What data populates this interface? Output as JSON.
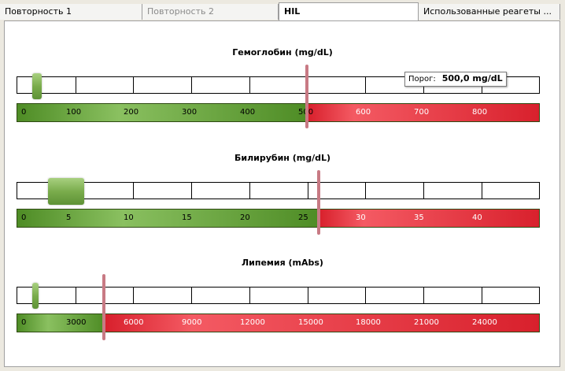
{
  "tabs": [
    {
      "label": "Повторность 1",
      "state": "normal"
    },
    {
      "label": "Повторность 2",
      "state": "inactive"
    },
    {
      "label": "HIL",
      "state": "active"
    },
    {
      "label": "Использованные реагеты ...",
      "state": "normal"
    }
  ],
  "colors": {
    "green_dark": "#4e8c25",
    "green_light": "#8ac060",
    "red": "#d8202c",
    "red_light": "#f45a63",
    "marker": "#c87a84"
  },
  "sliders": [
    {
      "title": "Гемоглобин (mg/dL)",
      "ticks": [
        "0",
        "100",
        "200",
        "300",
        "400",
        "500",
        "600",
        "700",
        "800"
      ],
      "threshold": 500,
      "max": 900,
      "value_fraction": 0.03
    },
    {
      "title": "Билирубин (mg/dL)",
      "ticks": [
        "0",
        "5",
        "10",
        "15",
        "20",
        "25",
        "30",
        "35",
        "40"
      ],
      "threshold": 26,
      "max": 45,
      "value_fraction": 0.06
    },
    {
      "title": "Липемия (mAbs)",
      "ticks": [
        "0",
        "3000",
        "6000",
        "9000",
        "12000",
        "15000",
        "18000",
        "21000",
        "24000"
      ],
      "threshold": 4500,
      "max": 27000,
      "value_fraction": 0.03
    }
  ],
  "tooltip": {
    "label": "Порог:",
    "value": "500,0 mg/dL"
  }
}
